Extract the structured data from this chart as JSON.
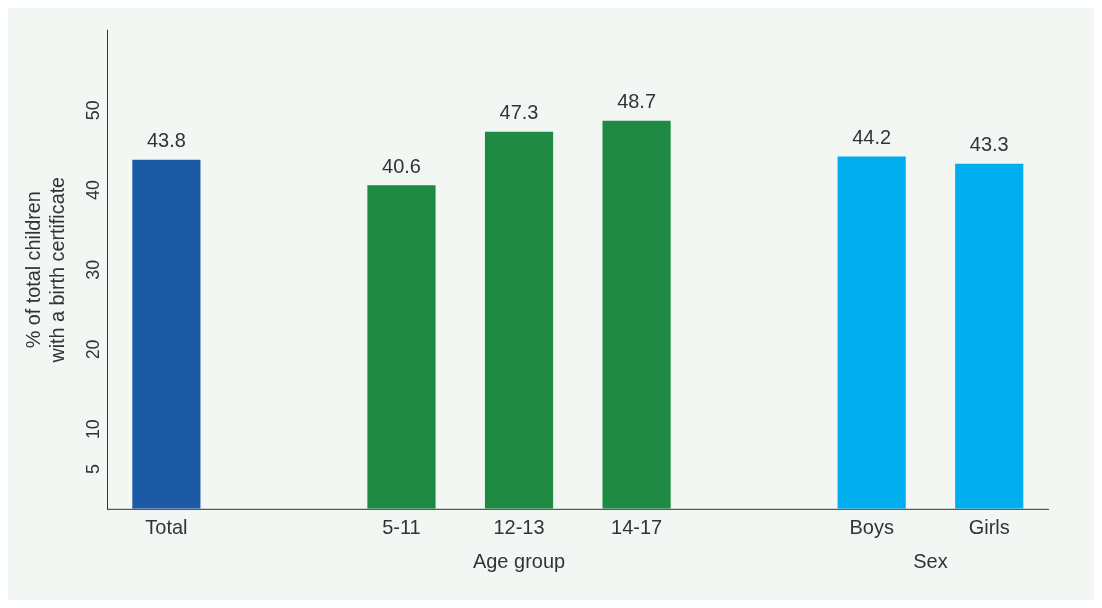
{
  "chart_data": {
    "type": "bar",
    "ylabel": "% of total children\nwith a birth certificate",
    "categories": [
      "Total",
      null,
      "5-11",
      "12-13",
      "14-17",
      null,
      "Boys",
      "Girls"
    ],
    "values": [
      43.8,
      null,
      40.6,
      47.3,
      48.7,
      null,
      44.2,
      43.3
    ],
    "colors": [
      "#1c5aa6",
      "#1c5aa6",
      "#1e8a43",
      "#1e8a43",
      "#1e8a43",
      "#00aeef",
      "#00aeef",
      "#00aeef"
    ],
    "data_labels": true,
    "ylim": [
      0,
      60
    ],
    "yticks": [
      5,
      10,
      20,
      30,
      40,
      50
    ],
    "grid": false,
    "legend": false,
    "annotations": [
      "Age group",
      "Sex"
    ]
  }
}
